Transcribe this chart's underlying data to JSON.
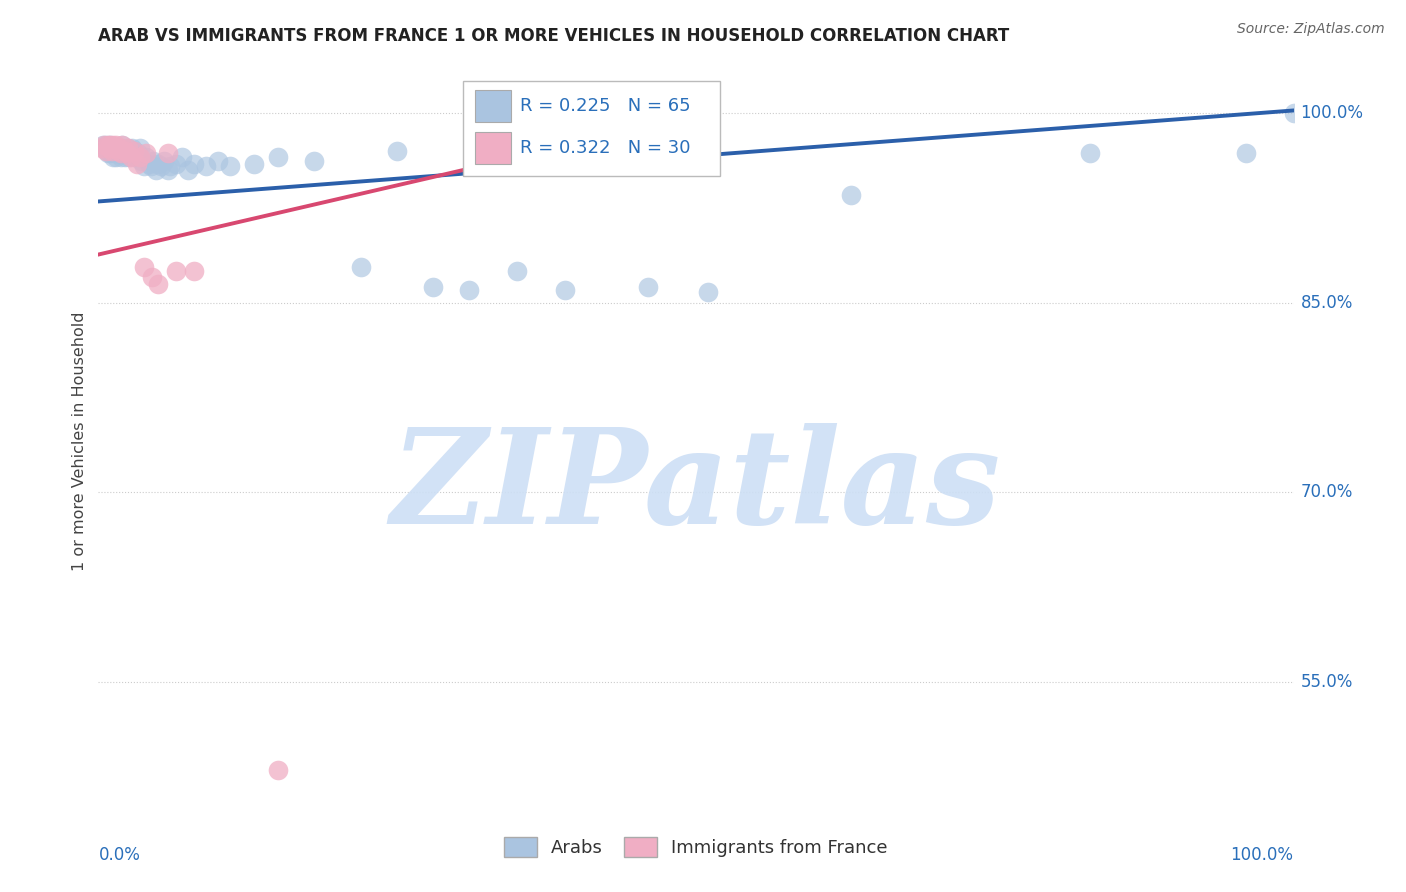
{
  "title": "ARAB VS IMMIGRANTS FROM FRANCE 1 OR MORE VEHICLES IN HOUSEHOLD CORRELATION CHART",
  "source": "Source: ZipAtlas.com",
  "ylabel": "1 or more Vehicles in Household",
  "legend_arab": "Arabs",
  "legend_france": "Immigrants from France",
  "legend_r_arab": "0.225",
  "legend_n_arab": "65",
  "legend_r_france": "0.322",
  "legend_n_france": "30",
  "ytick_labels": [
    "55.0%",
    "70.0%",
    "85.0%",
    "100.0%"
  ],
  "ytick_values": [
    0.55,
    0.7,
    0.85,
    1.0
  ],
  "xlim": [
    0.0,
    1.0
  ],
  "ylim": [
    0.44,
    1.04
  ],
  "arab_color": "#aac4e0",
  "france_color": "#f0aec4",
  "arab_line_color": "#2b5faa",
  "france_line_color": "#d84870",
  "watermark_zip_color": "#cddff5",
  "watermark_atlas_color": "#b8d0f0",
  "background_color": "#ffffff",
  "arab_x": [
    0.004,
    0.006,
    0.007,
    0.008,
    0.009,
    0.01,
    0.01,
    0.011,
    0.012,
    0.013,
    0.014,
    0.015,
    0.015,
    0.016,
    0.017,
    0.018,
    0.019,
    0.02,
    0.02,
    0.021,
    0.022,
    0.023,
    0.025,
    0.026,
    0.027,
    0.028,
    0.03,
    0.031,
    0.033,
    0.035,
    0.036,
    0.038,
    0.04,
    0.042,
    0.044,
    0.046,
    0.048,
    0.05,
    0.052,
    0.055,
    0.058,
    0.06,
    0.065,
    0.07,
    0.075,
    0.08,
    0.09,
    0.1,
    0.11,
    0.13,
    0.15,
    0.18,
    0.22,
    0.25,
    0.28,
    0.31,
    0.35,
    0.39,
    0.43,
    0.46,
    0.51,
    0.63,
    0.83,
    0.96,
    1.0
  ],
  "arab_y": [
    0.975,
    0.975,
    0.97,
    0.968,
    0.972,
    0.975,
    0.968,
    0.97,
    0.965,
    0.972,
    0.968,
    0.972,
    0.965,
    0.97,
    0.968,
    0.972,
    0.965,
    0.975,
    0.968,
    0.97,
    0.965,
    0.968,
    0.972,
    0.965,
    0.968,
    0.972,
    0.97,
    0.965,
    0.968,
    0.972,
    0.962,
    0.958,
    0.965,
    0.96,
    0.958,
    0.962,
    0.955,
    0.96,
    0.958,
    0.962,
    0.955,
    0.958,
    0.96,
    0.965,
    0.955,
    0.96,
    0.958,
    0.962,
    0.958,
    0.96,
    0.965,
    0.962,
    0.878,
    0.97,
    0.862,
    0.86,
    0.875,
    0.86,
    0.968,
    0.862,
    0.858,
    0.935,
    0.968,
    0.968,
    1.0
  ],
  "france_x": [
    0.003,
    0.005,
    0.006,
    0.008,
    0.009,
    0.01,
    0.011,
    0.012,
    0.013,
    0.015,
    0.016,
    0.017,
    0.019,
    0.02,
    0.022,
    0.024,
    0.025,
    0.027,
    0.03,
    0.032,
    0.035,
    0.038,
    0.04,
    0.045,
    0.05,
    0.058,
    0.065,
    0.08,
    0.15,
    0.35
  ],
  "france_y": [
    0.972,
    0.975,
    0.97,
    0.975,
    0.972,
    0.975,
    0.97,
    0.975,
    0.972,
    0.975,
    0.97,
    0.972,
    0.968,
    0.975,
    0.97,
    0.968,
    0.972,
    0.965,
    0.97,
    0.96,
    0.965,
    0.878,
    0.968,
    0.87,
    0.865,
    0.968,
    0.875,
    0.875,
    0.48,
    0.968
  ],
  "arab_trendline_x": [
    0.0,
    1.0
  ],
  "arab_trendline_y": [
    0.93,
    1.002
  ],
  "france_trendline_x": [
    0.0,
    0.42
  ],
  "france_trendline_y": [
    0.888,
    0.98
  ]
}
